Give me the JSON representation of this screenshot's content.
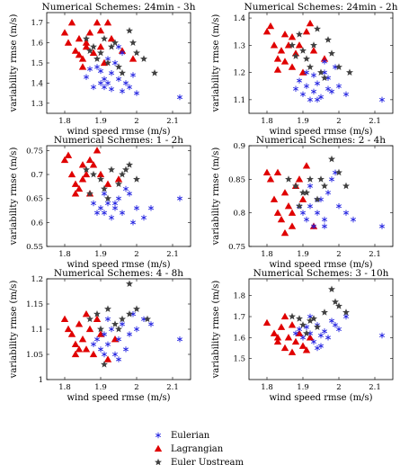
{
  "legend": {
    "items": [
      {
        "label": "Eulerian",
        "marker": "asterisk",
        "color": "#1f1fe0"
      },
      {
        "label": "Lagrangian",
        "marker": "triangle",
        "color": "#e00000"
      },
      {
        "label": "Euler Upstream",
        "marker": "star",
        "color": "#404040"
      }
    ]
  },
  "colors": {
    "Eulerian": "#1f1fe0",
    "Lagrangian": "#e00000",
    "Euler Upstream": "#404040"
  },
  "chart_data": [
    {
      "type": "scatter",
      "title": "Numerical Schemes: 24min - 3h",
      "xlabel": "wind speed rmse (m/s)",
      "ylabel": "variability rmse (m/s)",
      "xlim": [
        1.75,
        2.15
      ],
      "ylim": [
        1.25,
        1.75
      ],
      "xticks": [
        "1.8",
        "1.9",
        "2",
        "2.1"
      ],
      "yticks": [
        "1.3",
        "1.4",
        "1.5",
        "1.6",
        "1.7"
      ],
      "ytick_values": [
        1.3,
        1.4,
        1.5,
        1.6,
        1.7
      ],
      "series": [
        {
          "name": "Eulerian",
          "x": [
            1.86,
            1.88,
            1.9,
            1.91,
            1.92,
            1.93,
            1.9,
            1.94,
            1.95,
            1.96,
            1.97,
            1.98,
            1.99,
            2.0,
            1.92,
            1.89,
            1.93,
            1.96,
            2.12,
            1.91,
            1.87,
            1.95
          ],
          "y": [
            1.43,
            1.38,
            1.4,
            1.38,
            1.4,
            1.37,
            1.46,
            1.5,
            1.42,
            1.36,
            1.4,
            1.38,
            1.44,
            1.35,
            1.52,
            1.48,
            1.45,
            1.55,
            1.33,
            1.42,
            1.47,
            1.58
          ]
        },
        {
          "name": "Lagrangian",
          "x": [
            1.8,
            1.82,
            1.81,
            1.83,
            1.84,
            1.86,
            1.85,
            1.88,
            1.87,
            1.9,
            1.89,
            1.91,
            1.84,
            1.86,
            1.9,
            1.93,
            1.96,
            1.99,
            1.92,
            1.85
          ],
          "y": [
            1.65,
            1.7,
            1.6,
            1.56,
            1.62,
            1.58,
            1.52,
            1.55,
            1.65,
            1.58,
            1.7,
            1.5,
            1.54,
            1.6,
            1.66,
            1.62,
            1.56,
            1.52,
            1.7,
            1.48
          ]
        },
        {
          "name": "Euler Upstream",
          "x": [
            1.86,
            1.88,
            1.9,
            1.92,
            1.94,
            1.96,
            1.98,
            2.0,
            2.02,
            2.05,
            1.91,
            1.89,
            1.93,
            1.95,
            1.87,
            1.99
          ],
          "y": [
            1.62,
            1.58,
            1.55,
            1.5,
            1.6,
            1.45,
            1.66,
            1.55,
            1.52,
            1.45,
            1.62,
            1.52,
            1.58,
            1.48,
            1.56,
            1.6
          ]
        }
      ]
    },
    {
      "type": "scatter",
      "title": "Numerical Schemes: 24min - 2h",
      "xlabel": "wind speed rmse (m/s)",
      "ylabel": "variability rmse (m/s)",
      "xlim": [
        1.75,
        2.15
      ],
      "ylim": [
        1.05,
        1.42
      ],
      "xticks": [
        "1.8",
        "1.9",
        "2",
        "2.1"
      ],
      "yticks": [
        "1.1",
        "1.2",
        "1.3",
        "1.4"
      ],
      "ytick_values": [
        1.1,
        1.2,
        1.3,
        1.4
      ],
      "series": [
        {
          "name": "Eulerian",
          "x": [
            1.88,
            1.9,
            1.91,
            1.92,
            1.93,
            1.94,
            1.95,
            1.96,
            1.97,
            1.98,
            1.99,
            2.0,
            2.02,
            1.91,
            1.94,
            1.96,
            2.12,
            1.89,
            1.93,
            1.97
          ],
          "y": [
            1.14,
            1.12,
            1.15,
            1.1,
            1.13,
            1.16,
            1.11,
            1.2,
            1.18,
            1.13,
            1.22,
            1.15,
            1.12,
            1.2,
            1.1,
            1.24,
            1.1,
            1.17,
            1.19,
            1.14
          ]
        },
        {
          "name": "Lagrangian",
          "x": [
            1.8,
            1.81,
            1.82,
            1.83,
            1.84,
            1.85,
            1.86,
            1.87,
            1.88,
            1.9,
            1.91,
            1.85,
            1.83,
            1.89,
            1.93,
            1.96,
            1.87,
            1.92
          ],
          "y": [
            1.35,
            1.37,
            1.3,
            1.25,
            1.28,
            1.24,
            1.3,
            1.22,
            1.27,
            1.2,
            1.35,
            1.34,
            1.21,
            1.3,
            1.28,
            1.25,
            1.33,
            1.38
          ]
        },
        {
          "name": "Euler Upstream",
          "x": [
            1.87,
            1.89,
            1.9,
            1.91,
            1.92,
            1.93,
            1.95,
            1.96,
            1.98,
            2.0,
            2.03,
            1.94,
            1.88,
            1.97
          ],
          "y": [
            1.3,
            1.34,
            1.28,
            1.25,
            1.22,
            1.3,
            1.2,
            1.18,
            1.27,
            1.22,
            1.2,
            1.36,
            1.26,
            1.32
          ]
        }
      ]
    },
    {
      "type": "scatter",
      "title": "Numerical Schemes: 1 - 2h",
      "xlabel": "wind speed rmse (m/s)",
      "ylabel": "variability rmse (m/s)",
      "xlim": [
        1.75,
        2.15
      ],
      "ylim": [
        0.55,
        0.76
      ],
      "xticks": [
        "1.8",
        "1.9",
        "2",
        "2.1"
      ],
      "yticks": [
        "0.55",
        "0.6",
        "0.65",
        "0.7",
        "0.75"
      ],
      "ytick_values": [
        0.55,
        0.6,
        0.65,
        0.7,
        0.75
      ],
      "series": [
        {
          "name": "Eulerian",
          "x": [
            1.88,
            1.9,
            1.91,
            1.92,
            1.93,
            1.94,
            1.95,
            1.96,
            1.98,
            2.0,
            2.02,
            1.91,
            1.94,
            1.97,
            2.12,
            1.89,
            1.99,
            2.04
          ],
          "y": [
            0.64,
            0.63,
            0.62,
            0.64,
            0.61,
            0.63,
            0.65,
            0.62,
            0.66,
            0.63,
            0.61,
            0.66,
            0.64,
            0.67,
            0.65,
            0.62,
            0.6,
            0.63
          ]
        },
        {
          "name": "Lagrangian",
          "x": [
            1.8,
            1.81,
            1.82,
            1.83,
            1.84,
            1.85,
            1.86,
            1.87,
            1.88,
            1.9,
            1.92,
            1.85,
            1.89,
            1.95,
            1.83,
            1.87
          ],
          "y": [
            0.73,
            0.74,
            0.7,
            0.68,
            0.67,
            0.69,
            0.7,
            0.66,
            0.72,
            0.7,
            0.68,
            0.72,
            0.75,
            0.69,
            0.66,
            0.73
          ]
        },
        {
          "name": "Euler Upstream",
          "x": [
            1.86,
            1.88,
            1.9,
            1.91,
            1.93,
            1.95,
            1.96,
            1.98,
            2.0,
            1.92,
            1.87,
            1.97
          ],
          "y": [
            0.71,
            0.7,
            0.69,
            0.67,
            0.71,
            0.68,
            0.7,
            0.72,
            0.69,
            0.65,
            0.66,
            0.71
          ]
        }
      ]
    },
    {
      "type": "scatter",
      "title": "Numerical Schemes: 2 - 4h",
      "xlabel": "wind speed rmse (m/s)",
      "ylabel": "variability rmse (m/s)",
      "xlim": [
        1.75,
        2.15
      ],
      "ylim": [
        0.75,
        0.9
      ],
      "xticks": [
        "1.8",
        "1.9",
        "2",
        "2.1"
      ],
      "yticks": [
        "0.75",
        "0.8",
        "0.85",
        "0.9"
      ],
      "ytick_values": [
        0.75,
        0.8,
        0.85,
        0.9
      ],
      "series": [
        {
          "name": "Eulerian",
          "x": [
            1.9,
            1.91,
            1.92,
            1.93,
            1.94,
            1.95,
            1.96,
            1.97,
            1.98,
            2.0,
            2.02,
            2.04,
            1.92,
            1.96,
            2.12,
            1.99,
            1.94,
            1.89
          ],
          "y": [
            0.8,
            0.79,
            0.81,
            0.78,
            0.8,
            0.82,
            0.79,
            0.83,
            0.85,
            0.81,
            0.8,
            0.79,
            0.84,
            0.78,
            0.78,
            0.86,
            0.82,
            0.81
          ]
        },
        {
          "name": "Lagrangian",
          "x": [
            1.8,
            1.81,
            1.82,
            1.83,
            1.84,
            1.85,
            1.86,
            1.87,
            1.88,
            1.9,
            1.91,
            1.85,
            1.89,
            1.83,
            1.87,
            1.93
          ],
          "y": [
            0.86,
            0.85,
            0.82,
            0.8,
            0.79,
            0.83,
            0.81,
            0.78,
            0.84,
            0.82,
            0.87,
            0.77,
            0.85,
            0.86,
            0.8,
            0.78
          ]
        },
        {
          "name": "Euler Upstream",
          "x": [
            1.86,
            1.88,
            1.9,
            1.92,
            1.94,
            1.96,
            1.98,
            2.0,
            2.02,
            1.89,
            1.91,
            1.95
          ],
          "y": [
            0.85,
            0.84,
            0.83,
            0.85,
            0.82,
            0.84,
            0.88,
            0.86,
            0.84,
            0.81,
            0.83,
            0.85
          ]
        }
      ]
    },
    {
      "type": "scatter",
      "title": "Numerical Schemes: 4 - 8h",
      "xlabel": "wind speed rmse (m/s)",
      "ylabel": "variability rmse (m/s)",
      "xlim": [
        1.75,
        2.15
      ],
      "ylim": [
        1.0,
        1.2
      ],
      "xticks": [
        "1.8",
        "1.9",
        "2",
        "2.1"
      ],
      "yticks": [
        "1",
        "1.05",
        "1.1",
        "1.15",
        "1.2"
      ],
      "ytick_values": [
        1.0,
        1.05,
        1.1,
        1.15,
        1.2
      ],
      "series": [
        {
          "name": "Eulerian",
          "x": [
            1.89,
            1.9,
            1.91,
            1.92,
            1.93,
            1.94,
            1.95,
            1.96,
            1.97,
            1.98,
            2.0,
            2.02,
            1.92,
            1.95,
            2.12,
            1.88,
            1.99,
            2.04,
            1.91
          ],
          "y": [
            1.08,
            1.06,
            1.09,
            1.07,
            1.1,
            1.05,
            1.08,
            1.11,
            1.06,
            1.09,
            1.1,
            1.12,
            1.12,
            1.04,
            1.08,
            1.07,
            1.13,
            1.11,
            1.05
          ]
        },
        {
          "name": "Lagrangian",
          "x": [
            1.8,
            1.81,
            1.82,
            1.83,
            1.84,
            1.85,
            1.86,
            1.87,
            1.88,
            1.9,
            1.92,
            1.84,
            1.86,
            1.89,
            1.94,
            1.83
          ],
          "y": [
            1.12,
            1.1,
            1.09,
            1.07,
            1.11,
            1.08,
            1.06,
            1.1,
            1.05,
            1.09,
            1.04,
            1.06,
            1.13,
            1.12,
            1.08,
            1.05
          ]
        },
        {
          "name": "Euler Upstream",
          "x": [
            1.87,
            1.89,
            1.9,
            1.92,
            1.94,
            1.96,
            1.98,
            2.0,
            2.03,
            1.91,
            1.95,
            1.98
          ],
          "y": [
            1.12,
            1.13,
            1.1,
            1.14,
            1.11,
            1.12,
            1.19,
            1.14,
            1.12,
            1.03,
            1.1,
            1.13
          ]
        }
      ]
    },
    {
      "type": "scatter",
      "title": "Numerical Schemes: 3 - 10h",
      "xlabel": "wind speed rmse (m/s)",
      "ylabel": "variability rmse (m/s)",
      "xlim": [
        1.75,
        2.15
      ],
      "ylim": [
        1.4,
        1.88
      ],
      "xticks": [
        "1.8",
        "1.9",
        "2",
        "2.1"
      ],
      "yticks": [
        "1.5",
        "1.6",
        "1.7",
        "1.8"
      ],
      "ytick_values": [
        1.5,
        1.6,
        1.7,
        1.8
      ],
      "series": [
        {
          "name": "Eulerian",
          "x": [
            1.89,
            1.9,
            1.91,
            1.92,
            1.93,
            1.94,
            1.95,
            1.96,
            1.97,
            1.98,
            2.0,
            2.02,
            1.92,
            1.95,
            2.12,
            1.99,
            1.88,
            1.94
          ],
          "y": [
            1.64,
            1.6,
            1.65,
            1.62,
            1.58,
            1.66,
            1.61,
            1.63,
            1.6,
            1.68,
            1.64,
            1.7,
            1.7,
            1.56,
            1.61,
            1.66,
            1.62,
            1.55
          ]
        },
        {
          "name": "Lagrangian",
          "x": [
            1.8,
            1.82,
            1.83,
            1.84,
            1.85,
            1.86,
            1.87,
            1.88,
            1.89,
            1.9,
            1.92,
            1.85,
            1.87,
            1.83,
            1.91
          ],
          "y": [
            1.67,
            1.62,
            1.58,
            1.65,
            1.55,
            1.6,
            1.53,
            1.58,
            1.62,
            1.56,
            1.6,
            1.7,
            1.66,
            1.6,
            1.54
          ]
        },
        {
          "name": "Euler Upstream",
          "x": [
            1.87,
            1.89,
            1.9,
            1.92,
            1.94,
            1.96,
            1.98,
            2.0,
            2.02,
            1.91,
            1.93,
            1.99
          ],
          "y": [
            1.7,
            1.69,
            1.66,
            1.68,
            1.65,
            1.72,
            1.83,
            1.75,
            1.72,
            1.62,
            1.69,
            1.77
          ]
        }
      ]
    }
  ]
}
